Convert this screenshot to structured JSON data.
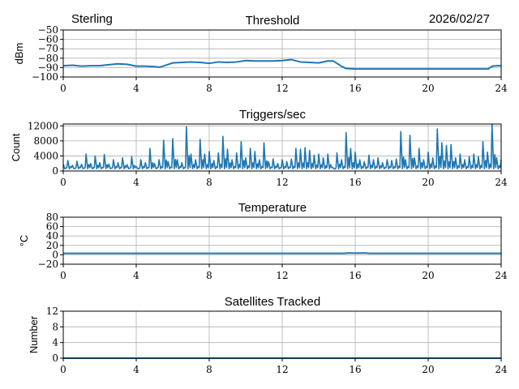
{
  "header": {
    "station": "Sterling",
    "date": "2026/02/27"
  },
  "colors": {
    "line": "#1f77b4",
    "grid": "#b0b0b0",
    "axis": "#000000"
  },
  "chart_data": [
    {
      "type": "line",
      "title": "Threshold",
      "xlabel": "",
      "ylabel": "dBm",
      "xlim": [
        0,
        24
      ],
      "ylim": [
        -100,
        -50
      ],
      "xticks": [
        0,
        4,
        8,
        12,
        16,
        20,
        24
      ],
      "yticks": [
        -100,
        -90,
        -80,
        -70,
        -60,
        -50
      ],
      "ytick_labels": [
        "−100",
        "−90",
        "−80",
        "−70",
        "−60",
        "−50"
      ],
      "grid": true,
      "x": [
        0,
        0.5,
        1,
        1.5,
        2,
        2.5,
        3,
        3.5,
        4,
        4.5,
        5,
        5.3,
        5.7,
        6,
        6.5,
        7,
        7.5,
        8,
        8.5,
        9,
        9.5,
        10,
        10.5,
        11,
        11.5,
        12,
        12.5,
        13,
        13.5,
        14,
        14.5,
        14.8,
        15.2,
        15.5,
        16,
        17,
        18,
        19,
        20,
        21,
        22,
        23,
        23.3,
        23.5,
        23.8,
        24
      ],
      "y": [
        -88,
        -87.5,
        -88.5,
        -88,
        -88,
        -87,
        -86,
        -86.5,
        -88.5,
        -88.5,
        -89,
        -89.5,
        -87,
        -85,
        -84.5,
        -84,
        -84.5,
        -85.5,
        -84,
        -84.5,
        -84,
        -82.5,
        -83,
        -83,
        -83,
        -82.5,
        -81.5,
        -84,
        -84.5,
        -85,
        -83,
        -83,
        -88,
        -91,
        -91.5,
        -91.5,
        -91.5,
        -91.5,
        -91.5,
        -91.5,
        -91.5,
        -91.5,
        -91.5,
        -88.5,
        -88,
        -88
      ]
    },
    {
      "type": "line",
      "title": "Triggers/sec",
      "xlabel": "",
      "ylabel": "Count",
      "xlim": [
        0,
        24
      ],
      "ylim": [
        0,
        12500
      ],
      "xticks": [
        0,
        4,
        8,
        12,
        16,
        20,
        24
      ],
      "yticks": [
        0,
        4000,
        8000,
        12000
      ],
      "ytick_labels": [
        "0",
        "4000",
        "8000",
        "12000"
      ],
      "grid": true,
      "x_step": 0.25,
      "min_level": 600,
      "y": [
        1800,
        2800,
        1500,
        2600,
        1800,
        4500,
        2000,
        4000,
        2200,
        4400,
        1800,
        3000,
        2200,
        3500,
        1700,
        3800,
        1200,
        3000,
        2200,
        6000,
        2000,
        3000,
        8200,
        2500,
        8600,
        3000,
        2200,
        11800,
        4500,
        3000,
        8400,
        4500,
        5200,
        2800,
        4800,
        9200,
        5800,
        3000,
        4800,
        7800,
        3500,
        6000,
        5200,
        3000,
        7500,
        2500,
        3200,
        2000,
        3000,
        2500,
        3200,
        6000,
        5800,
        6200,
        5500,
        4200,
        4500,
        3500,
        4500,
        1000,
        4800,
        3000,
        10200,
        6000,
        5000,
        3000,
        2500,
        4200,
        3000,
        3500,
        2200,
        3000,
        2800,
        3200,
        10500,
        3000,
        9500,
        3500,
        6000,
        3000,
        5000,
        3500,
        11200,
        7500,
        6800,
        7000,
        3500,
        4500,
        3000,
        3800,
        4500,
        3800,
        7800,
        5000,
        12500,
        3500,
        3000
      ]
    },
    {
      "type": "line",
      "title": "Temperature",
      "xlabel": "",
      "ylabel": "°C",
      "xlim": [
        0,
        24
      ],
      "ylim": [
        -20,
        80
      ],
      "xticks": [
        0,
        4,
        8,
        12,
        16,
        20,
        24
      ],
      "yticks": [
        -20,
        0,
        20,
        40,
        60,
        80
      ],
      "ytick_labels": [
        "−20",
        "0",
        "20",
        "40",
        "60",
        "80"
      ],
      "grid": true,
      "x": [
        0,
        15.4,
        15.6,
        16,
        16.5,
        16.8,
        24
      ],
      "y": [
        3,
        3,
        4,
        3.5,
        4,
        3,
        3
      ]
    },
    {
      "type": "line",
      "title": "Satellites Tracked",
      "xlabel": "",
      "ylabel": "Number",
      "xlim": [
        0,
        24
      ],
      "ylim": [
        0,
        12
      ],
      "xticks": [
        0,
        4,
        8,
        12,
        16,
        20,
        24
      ],
      "yticks": [
        0,
        4,
        8,
        12
      ],
      "ytick_labels": [
        "0",
        "4",
        "8",
        "12"
      ],
      "grid": true,
      "x": [
        0,
        24
      ],
      "y": [
        0,
        0
      ]
    }
  ]
}
